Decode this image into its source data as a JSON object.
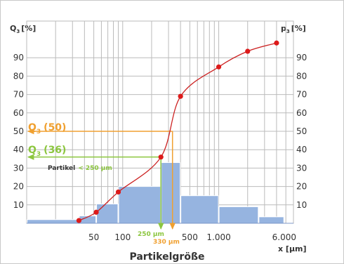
{
  "chart_data": {
    "type": "bar",
    "labels": {
      "left_axis_title": "Q",
      "left_axis_sub": "3",
      "left_axis_unit": "[%]",
      "right_axis_title": "p",
      "right_axis_sub": "3",
      "right_axis_unit": "[%]",
      "xlabel": "Partikelgröße",
      "xunit": "x [µm]",
      "left_ticks": [
        "10",
        "20",
        "30",
        "40",
        "50",
        "60",
        "70",
        "80",
        "90"
      ],
      "right_ticks": [
        "10",
        "20",
        "30",
        "40",
        "50",
        "60",
        "70",
        "80",
        "90"
      ],
      "x_ticks": [
        "50",
        "100",
        "500",
        "1.000",
        "6.000"
      ],
      "q50_letter": "Q",
      "q50_sub": "3",
      "q50_value": "(50)",
      "q36_letter": "Q",
      "q36_sub": "3",
      "q36_value": "(36)",
      "partikel_word": "Partikel",
      "partikel_cond": "< 250 µm",
      "marker_250": "250 µm",
      "marker_330": "330 µm"
    },
    "ylim": [
      0,
      100
    ],
    "y_tick_values": [
      10,
      20,
      30,
      40,
      50,
      60,
      70,
      80,
      90
    ],
    "x_scale": "log",
    "xlim": [
      10,
      6000
    ],
    "x_tick_values": [
      50,
      100,
      500,
      1000,
      6000
    ],
    "bars": [
      {
        "x0": 10,
        "x1": 35,
        "value": 2
      },
      {
        "x0": 35,
        "x1": 53,
        "value": 4
      },
      {
        "x0": 53,
        "x1": 90,
        "value": 10.5
      },
      {
        "x0": 90,
        "x1": 250,
        "value": 20
      },
      {
        "x0": 250,
        "x1": 400,
        "value": 33
      },
      {
        "x0": 400,
        "x1": 1000,
        "value": 15
      },
      {
        "x0": 1000,
        "x1": 2600,
        "value": 9
      },
      {
        "x0": 2600,
        "x1": 4800,
        "value": 3.5
      }
    ],
    "cumulative_curve": {
      "x": [
        35,
        53,
        90,
        250,
        400,
        1000,
        2000,
        4000
      ],
      "y": [
        1.5,
        6,
        17,
        36,
        69,
        85,
        93.5,
        98
      ]
    },
    "guides": [
      {
        "name": "Q3 (50)",
        "y": 50,
        "x": 330,
        "color": "#f0a030"
      },
      {
        "name": "Q3 (36)",
        "y": 36,
        "x": 250,
        "color": "#8cc63f"
      }
    ],
    "colors": {
      "bar_fill": "#96b4e0",
      "curve": "#cc2222",
      "points": "#dd1a1a",
      "grid": "#bbbbbb",
      "q50": "#f0a030",
      "q36": "#8cc63f"
    }
  }
}
